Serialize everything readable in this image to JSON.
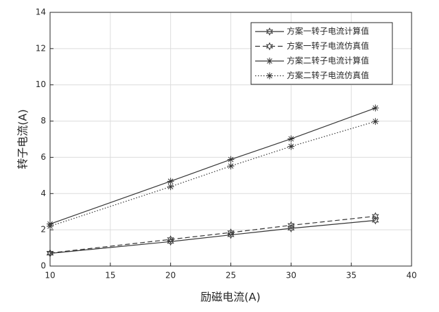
{
  "chart_data": {
    "type": "line",
    "x_label": "励磁电流(A)",
    "y_label": "转子电流(A)",
    "x": [
      10,
      20,
      25,
      30,
      37
    ],
    "series": [
      {
        "name": "方案一转子电流计算值",
        "color": "#333333",
        "line_style": "solid",
        "marker": "hexagram",
        "values": [
          0.7,
          1.35,
          1.72,
          2.08,
          2.52
        ]
      },
      {
        "name": "方案一转子电流仿真值",
        "color": "#333333",
        "line_style": "dashed",
        "marker": "hexagram",
        "values": [
          0.72,
          1.47,
          1.85,
          2.25,
          2.75
        ]
      },
      {
        "name": "方案二转子电流计算值",
        "color": "#333333",
        "line_style": "solid",
        "marker": "asterisk",
        "values": [
          2.32,
          4.68,
          5.88,
          7.02,
          8.72
        ]
      },
      {
        "name": "方案二转子电流仿真值",
        "color": "#333333",
        "line_style": "dotted",
        "marker": "asterisk",
        "values": [
          2.2,
          4.38,
          5.52,
          6.6,
          7.98
        ]
      }
    ],
    "xlim": [
      10,
      40
    ],
    "xticks": [
      10,
      15,
      20,
      25,
      30,
      35,
      40
    ],
    "ylim": [
      0,
      14
    ],
    "yticks": [
      0,
      2,
      4,
      6,
      8,
      10,
      12,
      14
    ],
    "grid": true,
    "legend": "upper right"
  }
}
